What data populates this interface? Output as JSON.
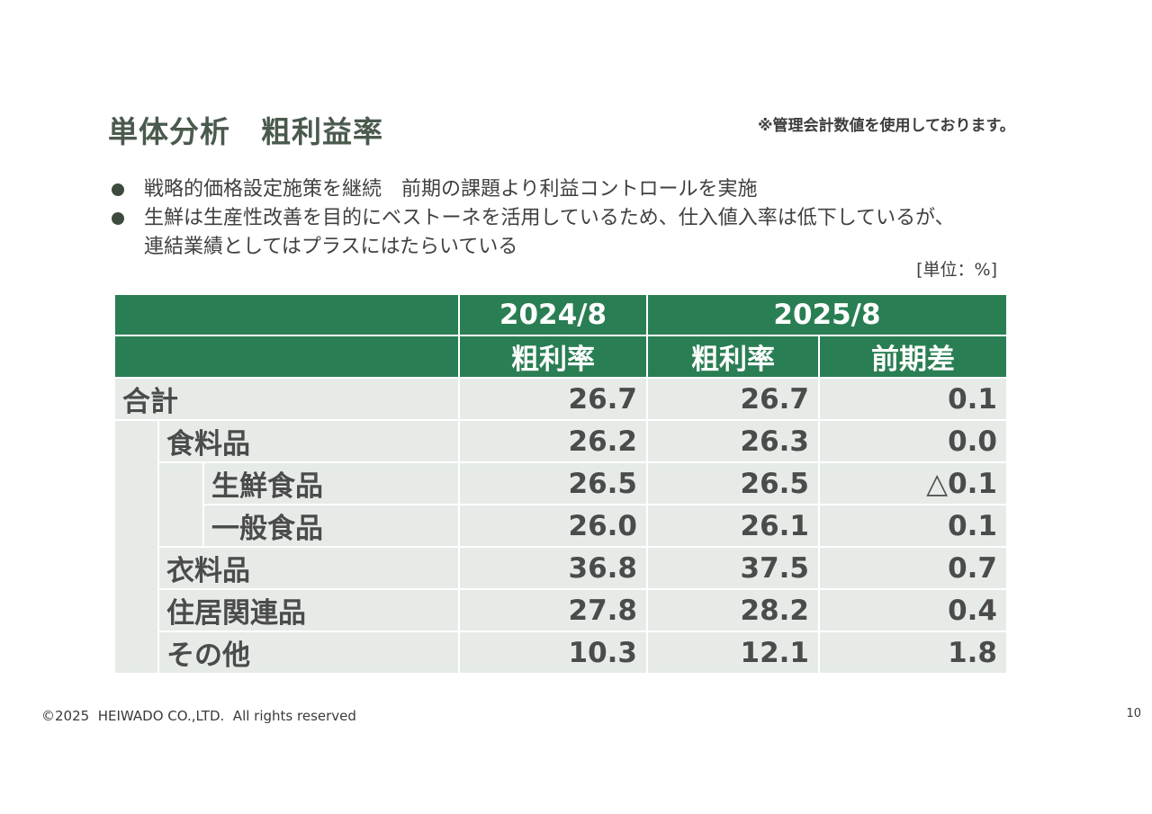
{
  "slide": {
    "title": "単体分析　粗利益率",
    "note": "※管理会計数値を使用しております。",
    "bullets": [
      "戦略的価格設定施策を継続　前期の課題より利益コントロールを実施",
      "生鮮は生産性改善を目的にベストーネを活用しているため、仕入値入率は低下しているが、\n連結業績としてはプラスにはたらいている"
    ],
    "unit": "[単位：%]",
    "footer": "©2025  HEIWADO CO.,LTD.  All rights reserved",
    "page_number": "10"
  },
  "table": {
    "header": {
      "period_1": "2024/8",
      "period_2": "2025/8",
      "col_1": "粗利率",
      "col_2": "粗利率",
      "col_3": "前期差"
    },
    "rows": [
      {
        "label": "合計",
        "v2024": "26.7",
        "v2025": "26.7",
        "diff": "0.1"
      },
      {
        "label": "食料品",
        "v2024": "26.2",
        "v2025": "26.3",
        "diff": "0.0"
      },
      {
        "label": "生鮮食品",
        "v2024": "26.5",
        "v2025": "26.5",
        "diff": "△0.1"
      },
      {
        "label": "一般食品",
        "v2024": "26.0",
        "v2025": "26.1",
        "diff": "0.1"
      },
      {
        "label": "衣料品",
        "v2024": "36.8",
        "v2025": "37.5",
        "diff": "0.7"
      },
      {
        "label": "住居関連品",
        "v2024": "27.8",
        "v2025": "28.2",
        "diff": "0.4"
      },
      {
        "label": "その他",
        "v2024": "10.3",
        "v2025": "12.1",
        "diff": "1.8"
      }
    ]
  }
}
